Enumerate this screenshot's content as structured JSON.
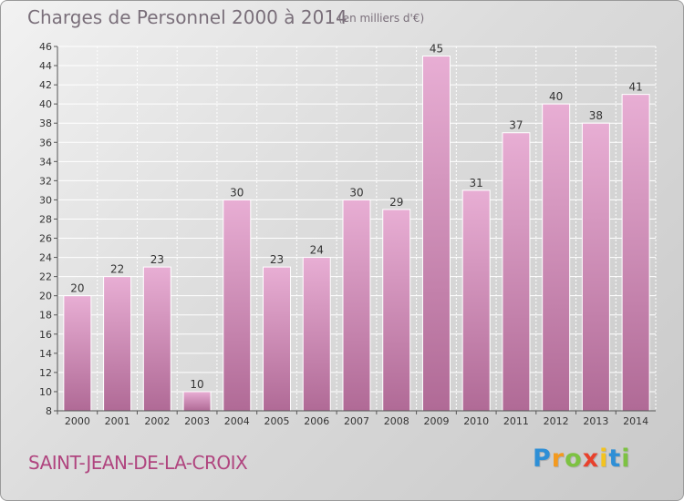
{
  "header": {
    "title": "Charges de Personnel 2000 à 2014",
    "subtitle": "(en milliers d'€)"
  },
  "commune": "SAINT-JEAN-DE-LA-CROIX",
  "logo": {
    "letters": [
      {
        "char": "P",
        "color": "#2e8fd6"
      },
      {
        "char": "r",
        "color": "#f39a1f"
      },
      {
        "char": "o",
        "color": "#7dc242"
      },
      {
        "char": "x",
        "color": "#e8412c"
      },
      {
        "char": "i",
        "color": "#f3c31f"
      },
      {
        "char": "t",
        "color": "#2e8fd6"
      },
      {
        "char": "i",
        "color": "#7dc242"
      }
    ]
  },
  "colors": {
    "bar_top": "#e8aed4",
    "bar_bottom": "#b06a96",
    "bar_stroke": "#ffffff"
  },
  "chart_data": {
    "type": "bar",
    "title": "Charges de Personnel 2000 à 2014",
    "subtitle": "(en milliers d'€)",
    "xlabel": "",
    "ylabel": "",
    "categories": [
      "2000",
      "2001",
      "2002",
      "2003",
      "2004",
      "2005",
      "2006",
      "2007",
      "2008",
      "2009",
      "2010",
      "2011",
      "2012",
      "2013",
      "2014"
    ],
    "values": [
      20,
      22,
      23,
      10,
      30,
      23,
      24,
      30,
      29,
      45,
      31,
      37,
      40,
      38,
      41
    ],
    "ylim": [
      8,
      46
    ],
    "yticks": [
      8,
      10,
      12,
      14,
      16,
      18,
      20,
      22,
      24,
      26,
      28,
      30,
      32,
      34,
      36,
      38,
      40,
      42,
      44,
      46
    ],
    "grid": true,
    "legend": "none"
  }
}
